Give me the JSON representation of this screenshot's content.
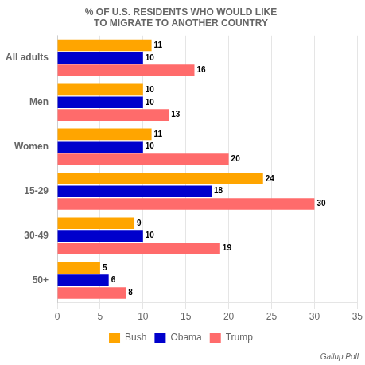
{
  "chart_data": {
    "type": "bar",
    "orientation": "horizontal",
    "title": "% OF U.S. RESIDENTS WHO WOULD LIKE TO MIGRATE TO ANOTHER COUNTRY",
    "categories": [
      "All adults",
      "Men",
      "Women",
      "15-29",
      "30-49",
      "50+"
    ],
    "series": [
      {
        "name": "Bush",
        "color": "#FFA500",
        "values": [
          11,
          10,
          11,
          24,
          9,
          5
        ]
      },
      {
        "name": "Obama",
        "color": "#0000CC",
        "values": [
          10,
          10,
          10,
          18,
          10,
          6
        ]
      },
      {
        "name": "Trump",
        "color": "#FF6B6B",
        "values": [
          16,
          13,
          20,
          30,
          19,
          8
        ]
      }
    ],
    "xlim": [
      0,
      35
    ],
    "xticks": [
      0,
      5,
      10,
      15,
      20,
      25,
      30,
      35
    ],
    "grid": "x",
    "legend": "bottom",
    "data_labels": true,
    "source": "Gallup Poll"
  }
}
